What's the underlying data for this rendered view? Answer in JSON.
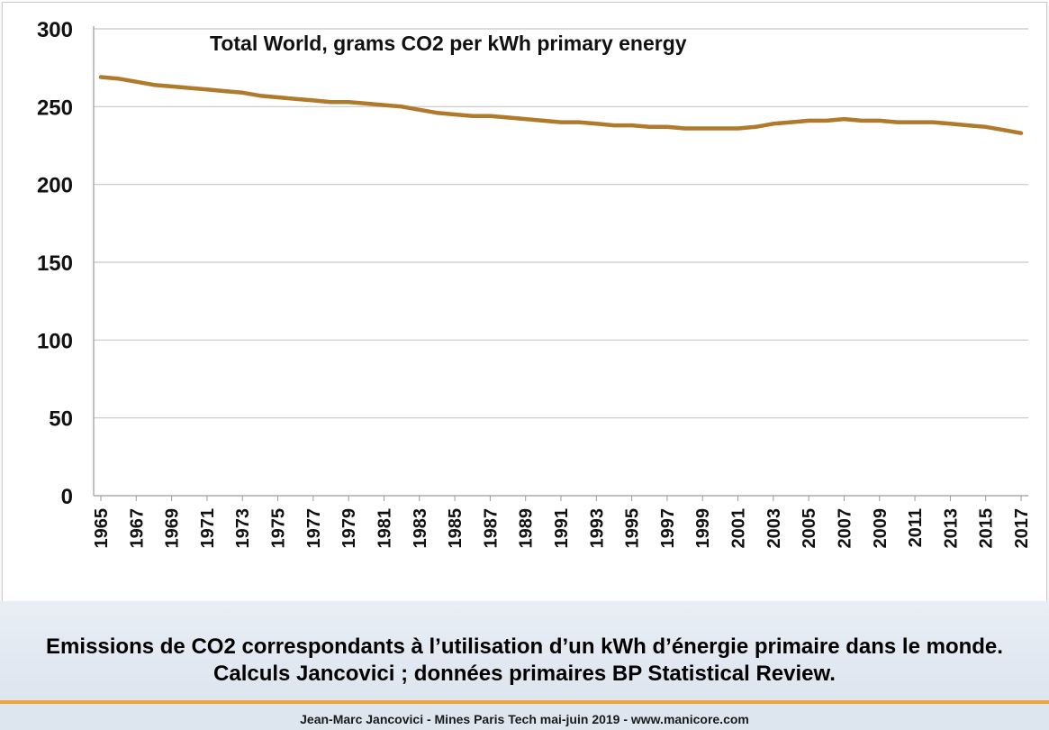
{
  "chart_data": {
    "type": "line",
    "title": "Total World, grams CO2 per kWh primary energy",
    "xlabel": "",
    "ylabel": "",
    "ylim": [
      0,
      300
    ],
    "yticks": [
      0,
      50,
      100,
      150,
      200,
      250,
      300
    ],
    "xtick_labels": [
      "1965",
      "1967",
      "1969",
      "1971",
      "1973",
      "1975",
      "1977",
      "1979",
      "1981",
      "1983",
      "1985",
      "1987",
      "1989",
      "1991",
      "1993",
      "1995",
      "1997",
      "1999",
      "2001",
      "2003",
      "2005",
      "2007",
      "2009",
      "2011",
      "2013",
      "2015",
      "2017"
    ],
    "grid": true,
    "line_color": "#b07a2c",
    "x": [
      1965,
      1966,
      1967,
      1968,
      1969,
      1970,
      1971,
      1972,
      1973,
      1974,
      1975,
      1976,
      1977,
      1978,
      1979,
      1980,
      1981,
      1982,
      1983,
      1984,
      1985,
      1986,
      1987,
      1988,
      1989,
      1990,
      1991,
      1992,
      1993,
      1994,
      1995,
      1996,
      1997,
      1998,
      1999,
      2000,
      2001,
      2002,
      2003,
      2004,
      2005,
      2006,
      2007,
      2008,
      2009,
      2010,
      2011,
      2012,
      2013,
      2014,
      2015,
      2016,
      2017
    ],
    "series": [
      {
        "values": [
          269,
          268,
          266,
          264,
          263,
          262,
          261,
          260,
          259,
          257,
          256,
          255,
          254,
          253,
          253,
          252,
          251,
          250,
          248,
          246,
          245,
          244,
          244,
          243,
          242,
          241,
          240,
          240,
          239,
          238,
          238,
          237,
          237,
          236,
          236,
          236,
          236,
          237,
          239,
          240,
          241,
          241,
          242,
          241,
          241,
          240,
          240,
          240,
          239,
          238,
          237,
          235,
          233
        ]
      }
    ]
  },
  "caption": "Emissions de CO2 correspondants à l’utilisation d’un kWh d’énergie primaire dans le monde. Calculs Jancovici ; données primaires BP Statistical Review.",
  "footer": "Jean-Marc Jancovici - Mines Paris Tech mai-juin 2019 - www.manicore.com"
}
